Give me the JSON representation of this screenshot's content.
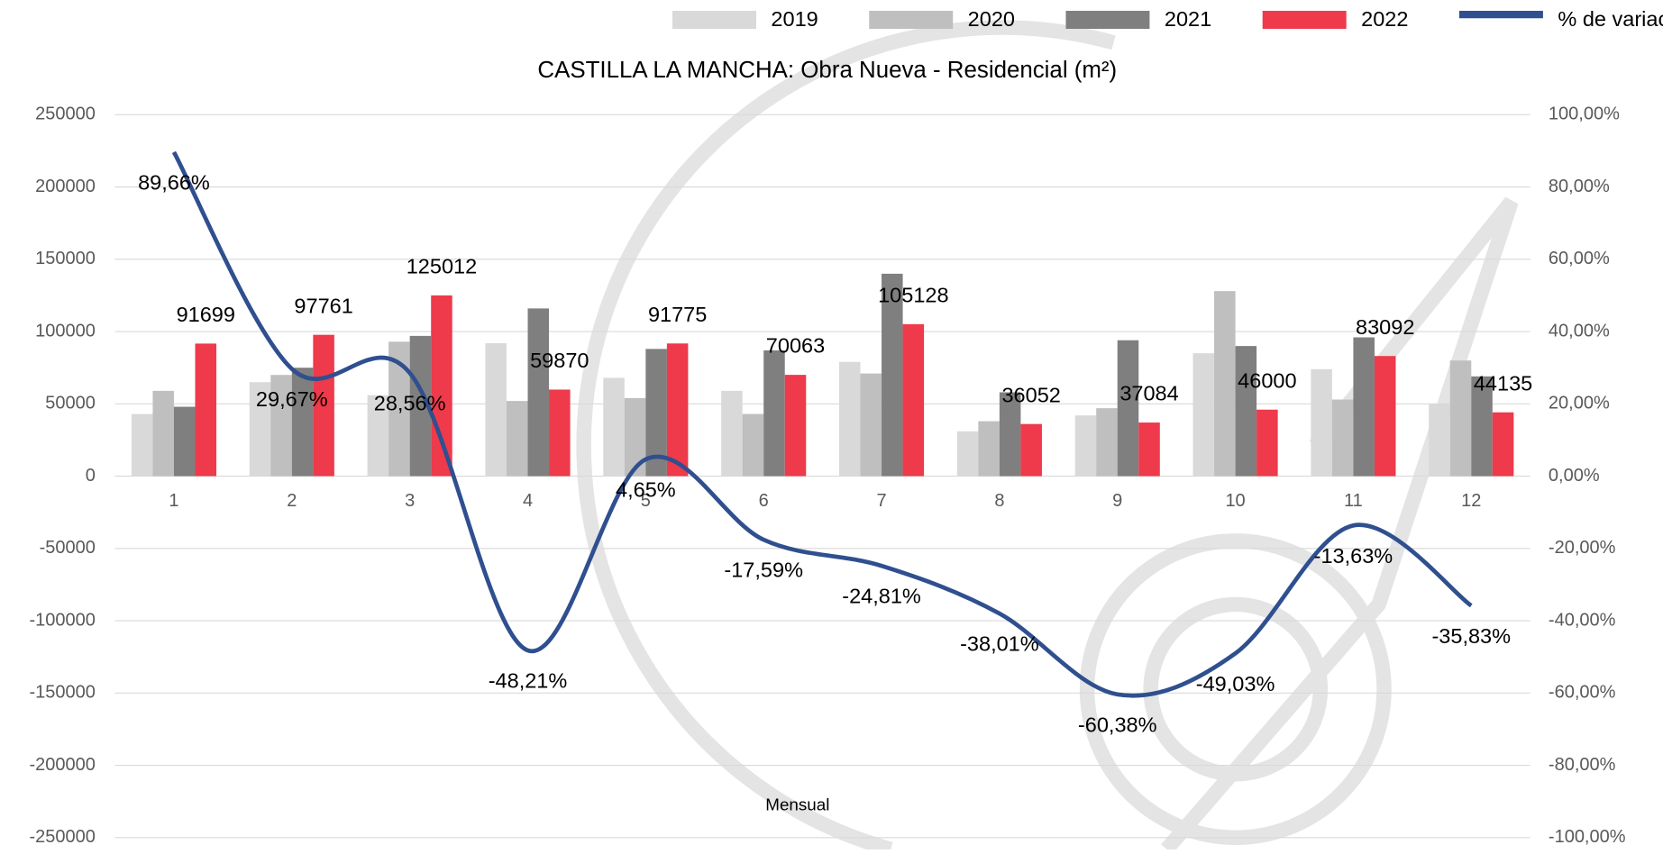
{
  "chart_data": {
    "type": "bar",
    "title": "CASTILLA LA MANCHA: Obra Nueva - Residencial (m²)",
    "x_label": "Mensual",
    "categories": [
      "1",
      "2",
      "3",
      "4",
      "5",
      "6",
      "7",
      "8",
      "9",
      "10",
      "11",
      "12"
    ],
    "series": [
      {
        "name": "2019",
        "color": "#d9d9d9",
        "values": [
          43000,
          65000,
          56000,
          92000,
          68000,
          59000,
          79000,
          31000,
          42000,
          85000,
          74000,
          50000
        ]
      },
      {
        "name": "2020",
        "color": "#bfbfbf",
        "values": [
          59000,
          70000,
          93000,
          52000,
          54000,
          43000,
          71000,
          38000,
          47000,
          128000,
          53000,
          80000
        ]
      },
      {
        "name": "2021",
        "color": "#7f7f7f",
        "values": [
          48000,
          75000,
          97000,
          116000,
          88000,
          87000,
          140000,
          58000,
          94000,
          90000,
          96000,
          69000
        ]
      },
      {
        "name": "2022",
        "color": "#ee3a4a",
        "values": [
          91699,
          97761,
          125012,
          59870,
          91775,
          70063,
          105128,
          36052,
          37084,
          46000,
          83092,
          44135
        ]
      },
      {
        "name": "% de variación",
        "color": "#2f4f8f",
        "type": "line",
        "axis": "y2",
        "values": [
          89.66,
          29.67,
          28.56,
          -48.21,
          4.65,
          -17.59,
          -24.81,
          -38.01,
          -60.38,
          -49.03,
          -13.63,
          -35.83
        ],
        "value_labels": [
          "89,66%",
          "29,67%",
          "28,56%",
          "-48,21%",
          "4,65%",
          "-17,59%",
          "-24,81%",
          "-38,01%",
          "-60,38%",
          "-49,03%",
          "-13,63%",
          "-35,83%"
        ]
      }
    ],
    "ylim": [
      -250000,
      250000
    ],
    "yticks": [
      -250000,
      -200000,
      -150000,
      -100000,
      -50000,
      0,
      50000,
      100000,
      150000,
      200000,
      250000
    ],
    "y2lim": [
      -100,
      100
    ],
    "y2ticks": [
      {
        "value": -100,
        "label": "-100,00%"
      },
      {
        "value": -80,
        "label": "-80,00%"
      },
      {
        "value": -60,
        "label": "-60,00%"
      },
      {
        "value": -40,
        "label": "-40,00%"
      },
      {
        "value": -20,
        "label": "-20,00%"
      },
      {
        "value": 0,
        "label": "0,00%"
      },
      {
        "value": 20,
        "label": "20,00%"
      },
      {
        "value": 40,
        "label": "40,00%"
      },
      {
        "value": 60,
        "label": "60,00%"
      },
      {
        "value": 80,
        "label": "80,00%"
      },
      {
        "value": 100,
        "label": "100,00%"
      }
    ],
    "grid": true,
    "legend": "top"
  }
}
